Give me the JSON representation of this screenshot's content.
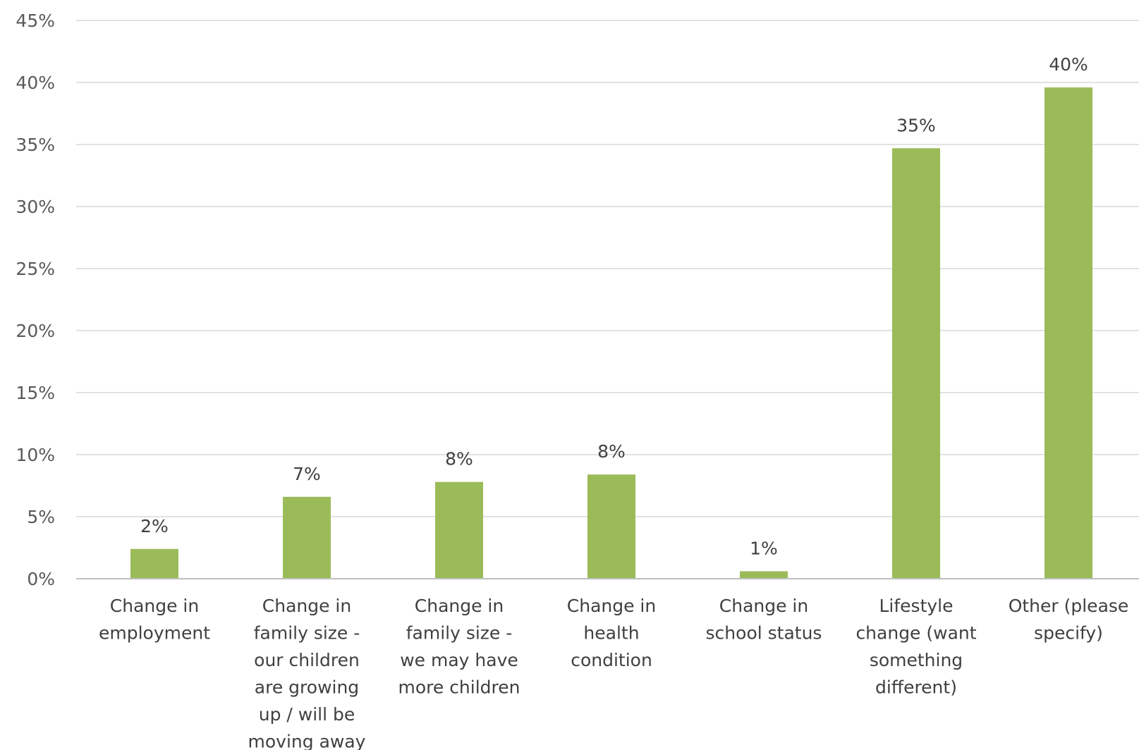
{
  "chart_data": {
    "type": "bar",
    "title": "",
    "xlabel": "",
    "ylabel": "",
    "ylim": [
      0,
      45
    ],
    "y_ticks": [
      "0%",
      "5%",
      "10%",
      "15%",
      "20%",
      "25%",
      "30%",
      "35%",
      "40%",
      "45%"
    ],
    "grid": true,
    "legend": "none",
    "bar_color": "#9bbb59",
    "categories": [
      [
        "Change in",
        "employment"
      ],
      [
        "Change in",
        "family size -",
        "our children",
        "are growing",
        "up / will be",
        "moving away"
      ],
      [
        "Change in",
        "family size -",
        "we may have",
        "more children"
      ],
      [
        "Change in",
        "health",
        "condition"
      ],
      [
        "Change in",
        "school status"
      ],
      [
        "Lifestyle",
        "change (want",
        "something",
        "different)"
      ],
      [
        "Other (please",
        "specify)"
      ]
    ],
    "values": [
      2.4,
      6.6,
      7.8,
      8.4,
      0.6,
      34.7,
      39.6
    ],
    "data_labels": [
      "2%",
      "7%",
      "8%",
      "8%",
      "1%",
      "35%",
      "40%"
    ]
  }
}
